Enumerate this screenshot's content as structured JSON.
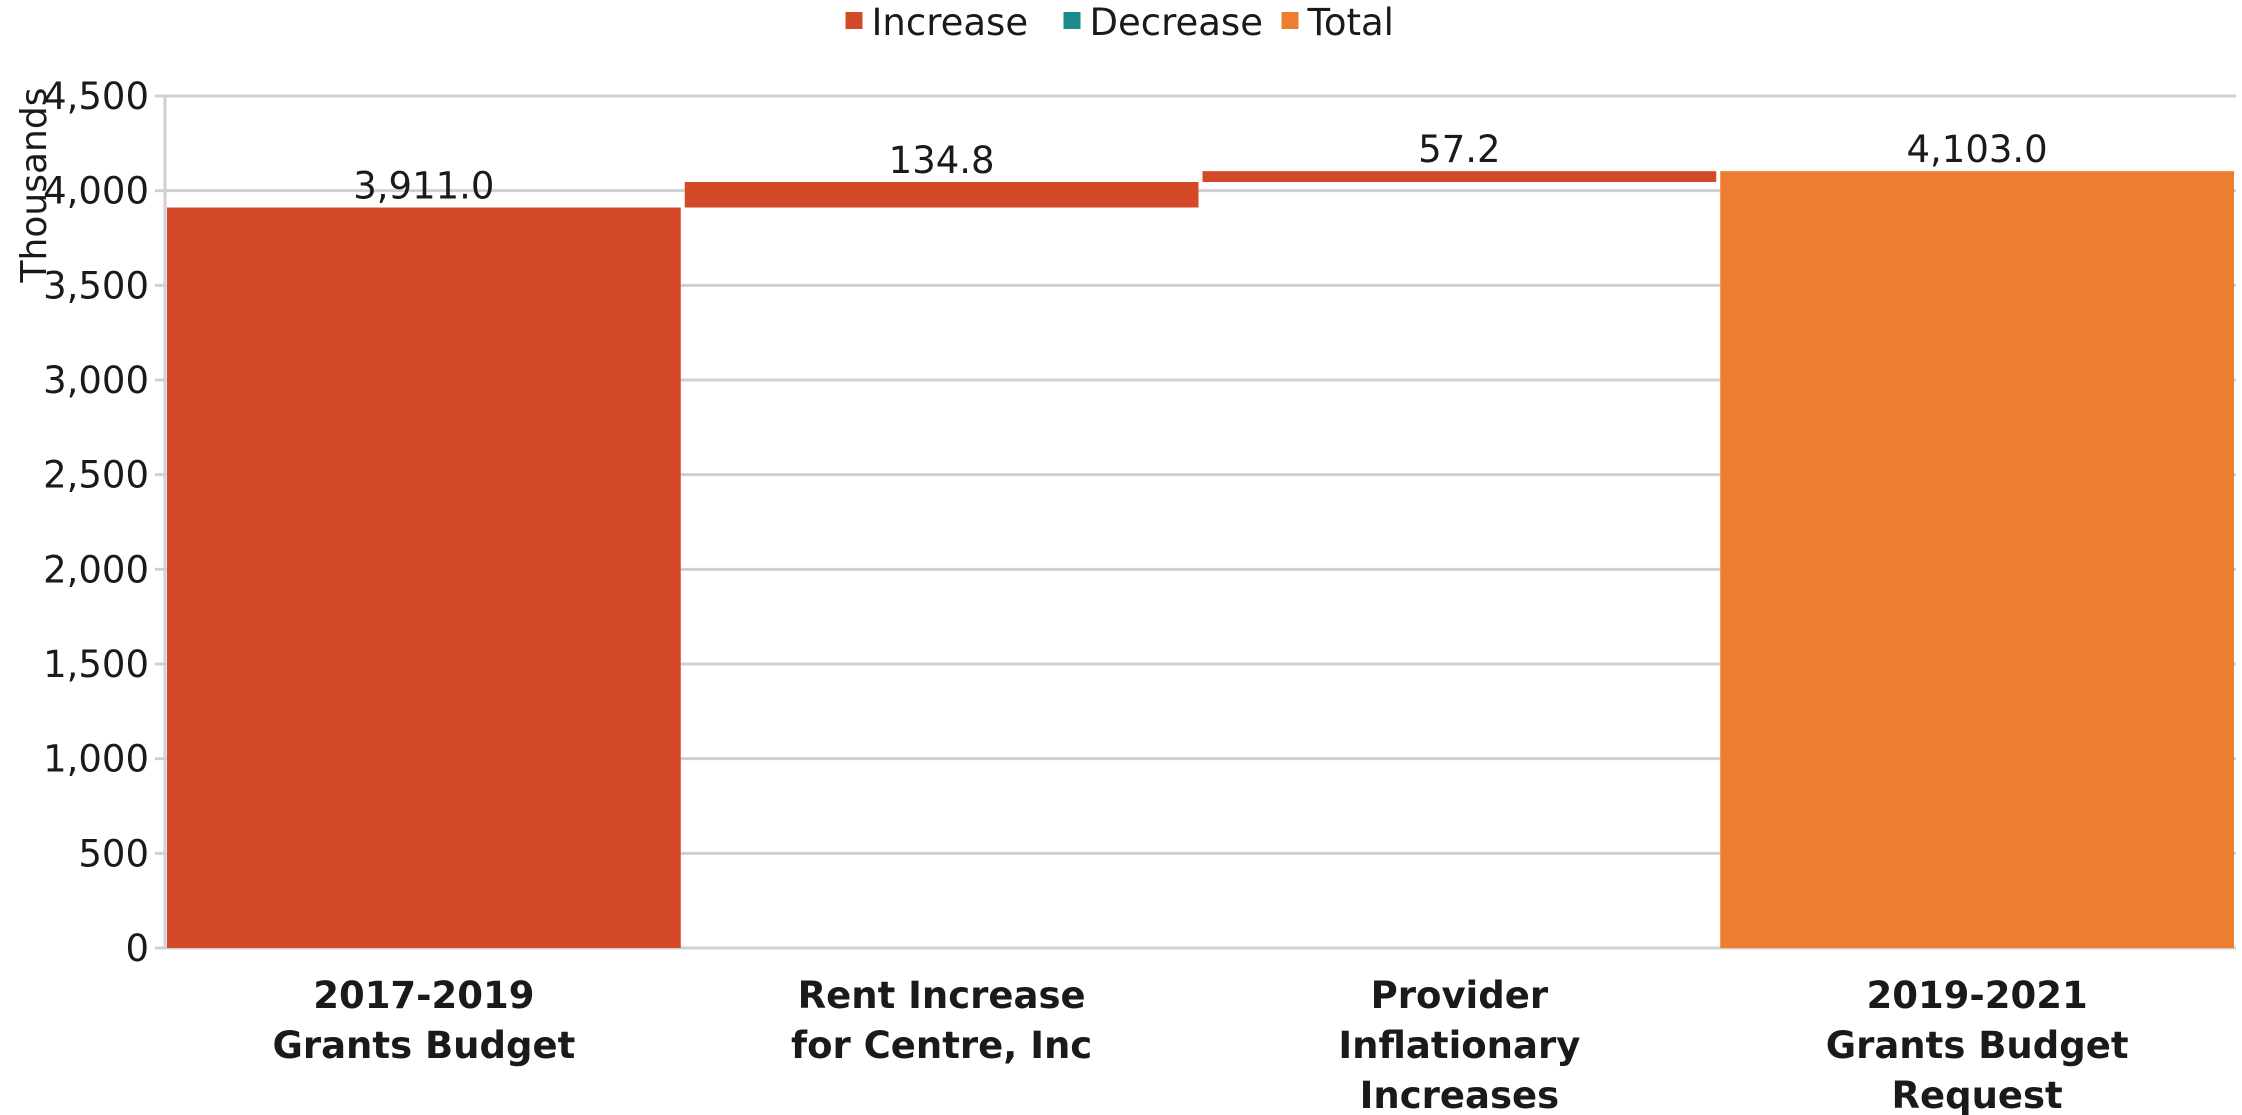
{
  "chart_data": {
    "type": "bar",
    "subtype": "waterfall",
    "categories": [
      [
        "2017-2019",
        "Grants Budget"
      ],
      [
        "Rent Increase",
        "for Centre, Inc"
      ],
      [
        "Provider",
        "Inflationary",
        "Increases"
      ],
      [
        "2019-2021",
        "Grants Budget",
        "Request"
      ]
    ],
    "steps": [
      {
        "kind": "increase",
        "value": 3911.0,
        "label": "3,911.0"
      },
      {
        "kind": "increase",
        "value": 134.8,
        "label": "134.8"
      },
      {
        "kind": "increase",
        "value": 57.2,
        "label": "57.2"
      },
      {
        "kind": "total",
        "value": 4103.0,
        "label": "4,103.0"
      }
    ],
    "legend": [
      {
        "name": "Increase",
        "color": "#D44927"
      },
      {
        "name": "Decrease",
        "color": "#1A8C8C"
      },
      {
        "name": "Total",
        "color": "#ED7D31"
      }
    ],
    "legend_position": "top-center",
    "ylabel": "Thousands",
    "ylim": [
      0,
      4500
    ],
    "yticks": [
      0,
      500,
      1000,
      1500,
      2000,
      2500,
      3000,
      3500,
      4000,
      4500
    ],
    "ytick_labels": [
      "0",
      "500",
      "1,000",
      "1,500",
      "2,000",
      "2,500",
      "3,000",
      "3,500",
      "4,000",
      "4,500"
    ],
    "grid": true
  }
}
